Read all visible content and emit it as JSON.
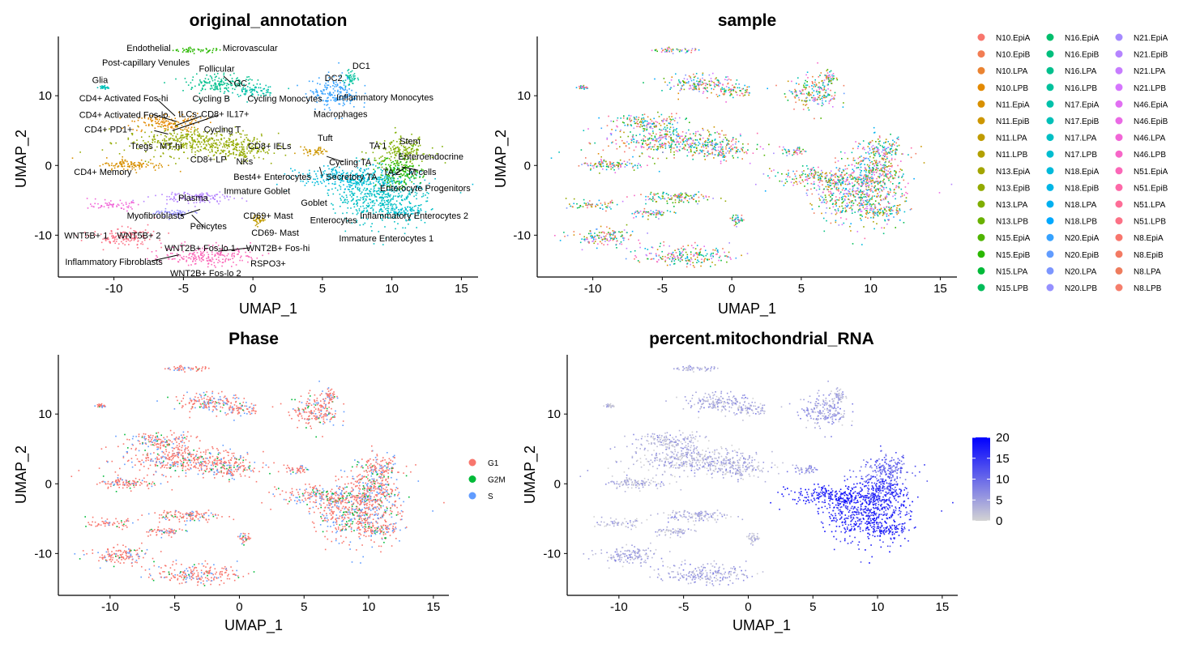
{
  "chart_data": [
    {
      "type": "scatter",
      "title": "original_annotation",
      "xlabel": "UMAP_1",
      "ylabel": "UMAP_2",
      "xlim": [
        -14,
        16.2
      ],
      "ylim": [
        -16,
        18.5
      ],
      "xticks": [
        -10,
        -5,
        0,
        5,
        10,
        15
      ],
      "yticks": [
        -10,
        0,
        10
      ],
      "legend": "none",
      "cluster_labels": [
        {
          "text": "Endothelial",
          "x": -7.5,
          "y": 16.9
        },
        {
          "text": "Microvascular",
          "x": -0.2,
          "y": 16.9
        },
        {
          "text": "Post-capillary Venules",
          "x": -7.7,
          "y": 14.8
        },
        {
          "text": "Follicular",
          "x": -2.6,
          "y": 13.9
        },
        {
          "text": "Glia",
          "x": -11,
          "y": 12.3
        },
        {
          "text": "GC",
          "x": -0.9,
          "y": 11.8
        },
        {
          "text": "CD4+ Activated Fos-hi",
          "x": -9.3,
          "y": 9.7
        },
        {
          "text": "Cycling B",
          "x": -3,
          "y": 9.6
        },
        {
          "text": "Cycling Monocytes",
          "x": 2.3,
          "y": 9.6
        },
        {
          "text": "Inflammatory Monocytes",
          "x": 9.5,
          "y": 9.8
        },
        {
          "text": "CD4+ Activated Fos-lo",
          "x": -9.3,
          "y": 7.3
        },
        {
          "text": "ILCs",
          "x": -4.7,
          "y": 7.4
        },
        {
          "text": "CD8+ IL17+",
          "x": -2,
          "y": 7.4
        },
        {
          "text": "Macrophages",
          "x": 6.3,
          "y": 7.4
        },
        {
          "text": "CD4+ PD1+",
          "x": -10.4,
          "y": 5.2
        },
        {
          "text": "Cycling T",
          "x": -2.2,
          "y": 5.2
        },
        {
          "text": "DC2",
          "x": 5.8,
          "y": 12.6
        },
        {
          "text": "DC1",
          "x": 7.8,
          "y": 14.3
        },
        {
          "text": "Tuft",
          "x": 5.2,
          "y": 4.0
        },
        {
          "text": "Stem",
          "x": 11.3,
          "y": 3.5
        },
        {
          "text": "TA 1",
          "x": 9.0,
          "y": 2.9
        },
        {
          "text": "Enteroendocrine",
          "x": 12.8,
          "y": 1.3
        },
        {
          "text": "Tregs",
          "x": -8,
          "y": 2.8
        },
        {
          "text": "MT-hi",
          "x": -5.9,
          "y": 2.8
        },
        {
          "text": "CD8+ IELs",
          "x": 1.2,
          "y": 2.8
        },
        {
          "text": "CD8+ LP",
          "x": -3.2,
          "y": 0.9
        },
        {
          "text": "NKs",
          "x": -0.6,
          "y": 0.6
        },
        {
          "text": "Cycling TA",
          "x": 7.0,
          "y": 0.5
        },
        {
          "text": "TA 2",
          "x": 10.0,
          "y": -0.9
        },
        {
          "text": "M cells",
          "x": 12.2,
          "y": -0.9
        },
        {
          "text": "CD4+ Memory",
          "x": -10.8,
          "y": -0.9
        },
        {
          "text": "Best4+ Enterocytes",
          "x": 1.4,
          "y": -1.6
        },
        {
          "text": "Secretory TA",
          "x": 7.1,
          "y": -1.6
        },
        {
          "text": "Enterocyte Progenitors",
          "x": 12.4,
          "y": -3.2
        },
        {
          "text": "Immature Goblet",
          "x": 0.3,
          "y": -3.6
        },
        {
          "text": "Plasma",
          "x": -4.3,
          "y": -4.6
        },
        {
          "text": "Goblet",
          "x": 4.4,
          "y": -5.3
        },
        {
          "text": "Myofibroblasts",
          "x": -7,
          "y": -7.2
        },
        {
          "text": "CD69+ Mast",
          "x": 1.1,
          "y": -7.2
        },
        {
          "text": "Inflammatory Enterocytes 2",
          "x": 11.6,
          "y": -7.2
        },
        {
          "text": "Enterocytes",
          "x": 5.8,
          "y": -7.8
        },
        {
          "text": "Pericytes",
          "x": -3.2,
          "y": -8.7
        },
        {
          "text": "CD69- Mast",
          "x": 1.6,
          "y": -9.6
        },
        {
          "text": "WNT5B+ 1",
          "x": -12,
          "y": -10.0
        },
        {
          "text": "WNT5B+ 2",
          "x": -8.2,
          "y": -10.0
        },
        {
          "text": "Immature Enterocytes 1",
          "x": 9.6,
          "y": -10.4
        },
        {
          "text": "WNT2B+ Fos-lo 1",
          "x": -3.8,
          "y": -11.8
        },
        {
          "text": "WNT2B+ Fos-hi",
          "x": 1.8,
          "y": -11.8
        },
        {
          "text": "Inflammatory Fibroblasts",
          "x": -10,
          "y": -13.8
        },
        {
          "text": "RSPO3+",
          "x": 1.1,
          "y": -14.0
        },
        {
          "text": "WNT2B+ Fos-lo 2",
          "x": -3.4,
          "y": -15.4
        }
      ]
    },
    {
      "type": "scatter",
      "title": "sample",
      "xlabel": "UMAP_1",
      "ylabel": "UMAP_2",
      "xlim": [
        -14,
        16.2
      ],
      "ylim": [
        -16,
        18.5
      ],
      "xticks": [
        -10,
        -5,
        0,
        5,
        10,
        15
      ],
      "yticks": [
        -10,
        0,
        10
      ],
      "legend": "right",
      "series": [
        {
          "name": "N10.EpiA",
          "color": "#F8766D"
        },
        {
          "name": "N10.EpiB",
          "color": "#F27D53"
        },
        {
          "name": "N10.LPA",
          "color": "#EA8331"
        },
        {
          "name": "N10.LPB",
          "color": "#E38900"
        },
        {
          "name": "N11.EpiA",
          "color": "#D89000"
        },
        {
          "name": "N11.EpiB",
          "color": "#CD9600"
        },
        {
          "name": "N11.LPA",
          "color": "#C09B00"
        },
        {
          "name": "N11.LPB",
          "color": "#B2A000"
        },
        {
          "name": "N13.EpiA",
          "color": "#A3A500"
        },
        {
          "name": "N13.EpiB",
          "color": "#93AA00"
        },
        {
          "name": "N13.LPA",
          "color": "#7FAE00"
        },
        {
          "name": "N13.LPB",
          "color": "#69B100"
        },
        {
          "name": "N15.EpiA",
          "color": "#4FB400"
        },
        {
          "name": "N15.EpiB",
          "color": "#2AB800"
        },
        {
          "name": "N15.LPA",
          "color": "#00BA38"
        },
        {
          "name": "N15.LPB",
          "color": "#00BC59"
        },
        {
          "name": "N16.EpiA",
          "color": "#00BE6C"
        },
        {
          "name": "N16.EpiB",
          "color": "#00BF7D"
        },
        {
          "name": "N16.LPA",
          "color": "#00C08D"
        },
        {
          "name": "N16.LPB",
          "color": "#00C19C"
        },
        {
          "name": "N17.EpiA",
          "color": "#00C1AA"
        },
        {
          "name": "N17.EpiB",
          "color": "#00C0B8"
        },
        {
          "name": "N17.LPA",
          "color": "#00BFC4"
        },
        {
          "name": "N17.LPB",
          "color": "#00BDD0"
        },
        {
          "name": "N18.EpiA",
          "color": "#00BADB"
        },
        {
          "name": "N18.EpiB",
          "color": "#00B6E6"
        },
        {
          "name": "N18.LPA",
          "color": "#00B0F0"
        },
        {
          "name": "N18.LPB",
          "color": "#00A9FF"
        },
        {
          "name": "N20.EpiA",
          "color": "#35A2FF"
        },
        {
          "name": "N20.EpiB",
          "color": "#619CFF"
        },
        {
          "name": "N20.LPA",
          "color": "#7C96FF"
        },
        {
          "name": "N20.LPB",
          "color": "#9590FF"
        },
        {
          "name": "N21.EpiA",
          "color": "#A58AFF"
        },
        {
          "name": "N21.EpiB",
          "color": "#B584FF"
        },
        {
          "name": "N21.LPA",
          "color": "#C77CFF"
        },
        {
          "name": "N21.LPB",
          "color": "#D575FE"
        },
        {
          "name": "N46.EpiA",
          "color": "#E16FF2"
        },
        {
          "name": "N46.EpiB",
          "color": "#EA6AE5"
        },
        {
          "name": "N46.LPA",
          "color": "#F166D7"
        },
        {
          "name": "N46.LPB",
          "color": "#F766C8"
        },
        {
          "name": "N51.EpiA",
          "color": "#FB67B8"
        },
        {
          "name": "N51.EpiB",
          "color": "#FD69A8"
        },
        {
          "name": "N51.LPA",
          "color": "#FE6D97"
        },
        {
          "name": "N51.LPB",
          "color": "#FC7186"
        },
        {
          "name": "N8.EpiA",
          "color": "#F8766D"
        },
        {
          "name": "N8.EpiB",
          "color": "#F37A63"
        },
        {
          "name": "N8.LPA",
          "color": "#EE7C5D"
        },
        {
          "name": "N8.LPB",
          "color": "#F57E6C"
        }
      ]
    },
    {
      "type": "scatter",
      "title": "Phase",
      "xlabel": "UMAP_1",
      "ylabel": "UMAP_2",
      "xlim": [
        -14,
        16.2
      ],
      "ylim": [
        -16,
        18.5
      ],
      "xticks": [
        -10,
        -5,
        0,
        5,
        10,
        15
      ],
      "yticks": [
        -10,
        0,
        10
      ],
      "legend": "right",
      "series": [
        {
          "name": "G1",
          "color": "#F8766D"
        },
        {
          "name": "G2M",
          "color": "#00BA38"
        },
        {
          "name": "S",
          "color": "#619CFF"
        }
      ]
    },
    {
      "type": "scatter",
      "title": "percent.mitochondrial_RNA",
      "xlabel": "UMAP_1",
      "ylabel": "UMAP_2",
      "xlim": [
        -14,
        16.2
      ],
      "ylim": [
        -16,
        18.5
      ],
      "xticks": [
        -10,
        -5,
        0,
        5,
        10,
        15
      ],
      "yticks": [
        -10,
        0,
        10
      ],
      "legend": "right",
      "colorbar": {
        "min": 0,
        "max": 20,
        "ticks": [
          0,
          5,
          10,
          15,
          20
        ],
        "low": "#D3D3D3",
        "high": "#0000FF"
      }
    }
  ],
  "clusters": [
    {
      "x": -4,
      "y": 16.6,
      "w": 1.8,
      "h": 0.35,
      "c": 13,
      "mito": 0.2
    },
    {
      "x": -2.5,
      "y": 11.8,
      "w": 2.7,
      "h": 1.3,
      "c": 18,
      "mito": 0.2
    },
    {
      "x": 0,
      "y": 10.8,
      "w": 1.6,
      "h": 0.8,
      "c": 20,
      "mito": 0.2
    },
    {
      "x": -10.8,
      "y": 11.3,
      "w": 0.4,
      "h": 0.3,
      "c": 21,
      "mito": 0.1
    },
    {
      "x": -6.2,
      "y": 6.2,
      "w": 2.6,
      "h": 1.3,
      "c": 3,
      "mito": 0.15
    },
    {
      "x": -4.5,
      "y": 3.5,
      "w": 4.8,
      "h": 2.0,
      "c": 9,
      "mito": 0.15
    },
    {
      "x": -8.8,
      "y": 0.2,
      "w": 2.5,
      "h": 0.9,
      "c": 4,
      "mito": 0.15
    },
    {
      "x": -1.0,
      "y": 2.3,
      "w": 2.0,
      "h": 1.5,
      "c": 9,
      "mito": 0.15
    },
    {
      "x": 5.8,
      "y": 10.5,
      "w": 1.8,
      "h": 2.4,
      "c": 28,
      "mito": 0.25
    },
    {
      "x": 6.9,
      "y": 12.7,
      "w": 0.5,
      "h": 1.1,
      "c": 19,
      "mito": 0.2
    },
    {
      "x": 4.4,
      "y": 2.1,
      "w": 1.0,
      "h": 0.6,
      "c": 5,
      "mito": 0.3
    },
    {
      "x": 10.6,
      "y": 2.2,
      "w": 2.0,
      "h": 2.0,
      "c": 10,
      "mito": 0.55
    },
    {
      "x": 7.2,
      "y": -1.8,
      "w": 4.0,
      "h": 1.8,
      "c": 24,
      "mito": 0.85
    },
    {
      "x": 9.2,
      "y": -4.5,
      "w": 3.2,
      "h": 4.0,
      "c": 22,
      "mito": 0.8
    },
    {
      "x": 10.5,
      "y": -0.8,
      "w": 1.6,
      "h": 2.2,
      "c": 13,
      "mito": 0.75
    },
    {
      "x": 11.0,
      "y": -6.5,
      "w": 1.3,
      "h": 0.7,
      "c": 23,
      "mito": 0.8
    },
    {
      "x": 0.4,
      "y": -7.8,
      "w": 0.6,
      "h": 0.6,
      "c": 6,
      "mito": 0.1
    },
    {
      "x": -4.3,
      "y": -4.5,
      "w": 2.8,
      "h": 0.9,
      "c": 33,
      "mito": 0.15
    },
    {
      "x": -5.8,
      "y": -6.8,
      "w": 1.6,
      "h": 0.6,
      "c": 31,
      "mito": 0.15
    },
    {
      "x": -10.2,
      "y": -5.6,
      "w": 1.5,
      "h": 0.6,
      "c": 38,
      "mito": 0.15
    },
    {
      "x": -9.3,
      "y": -10.2,
      "w": 2.3,
      "h": 1.3,
      "c": 43,
      "mito": 0.2
    },
    {
      "x": -3.3,
      "y": -12.8,
      "w": 3.2,
      "h": 1.5,
      "c": 40,
      "mito": 0.2
    }
  ],
  "label_lines": [
    [
      -2.1,
      12.8,
      -1.5,
      11.7
    ],
    [
      -6.9,
      9.5,
      -5.6,
      7.1
    ],
    [
      -7.2,
      7.3,
      -5.5,
      6.3
    ],
    [
      -3.7,
      7.1,
      -5.6,
      5.7
    ],
    [
      -2.5,
      7.2,
      -5.8,
      5.0
    ],
    [
      -7.1,
      5.0,
      -6.1,
      4.5
    ],
    [
      6.5,
      0.5,
      5.3,
      1.3
    ],
    [
      5.0,
      -1.6,
      4.8,
      -0.2
    ],
    [
      -5.2,
      -7.2,
      -3.8,
      -6.3
    ],
    [
      -3.5,
      -8.9,
      -4.4,
      -7.1
    ],
    [
      -0.2,
      -11.8,
      -2.5,
      -12.3
    ],
    [
      -7.3,
      -13.7,
      -5.3,
      -12.8
    ],
    [
      11.9,
      -0.7,
      10.7,
      -0.2
    ],
    [
      10.0,
      -1.5,
      11.0,
      -0.3
    ]
  ],
  "phase_mix": {
    "epi": [
      0.62,
      0.13,
      0.25
    ],
    "lp": [
      0.72,
      0.08,
      0.2
    ]
  }
}
